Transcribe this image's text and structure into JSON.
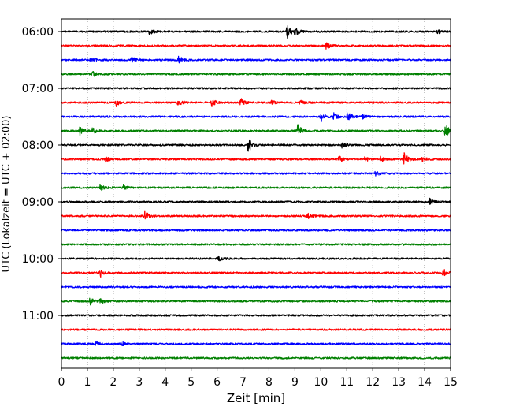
{
  "chart_data": {
    "type": "line",
    "title": "",
    "xlabel": "Zeit  [min]",
    "ylabel": "UTC (Lokalzeit = UTC + 02:00)",
    "xlim": [
      0,
      15
    ],
    "x_ticks": [
      "0",
      "1",
      "2",
      "3",
      "4",
      "5",
      "6",
      "7",
      "8",
      "9",
      "10",
      "11",
      "12",
      "13",
      "14",
      "15"
    ],
    "y_tick_labels": [
      "06:00",
      "07:00",
      "08:00",
      "09:00",
      "10:00",
      "11:00"
    ],
    "grid": "vertical dotted lines at each minute",
    "trace_interval_minutes": 15,
    "first_trace": "06:00",
    "trace_colors": [
      "#000000",
      "#ff0000",
      "#0000ff",
      "#008000"
    ],
    "traces": [
      {
        "time": "06:00",
        "color": "#000000",
        "events": [
          {
            "min": 3.4,
            "amp": 4
          },
          {
            "min": 8.7,
            "amp": 9
          },
          {
            "min": 9.0,
            "amp": 6
          },
          {
            "min": 14.5,
            "amp": 3
          }
        ]
      },
      {
        "time": "06:15",
        "color": "#ff0000",
        "events": [
          {
            "min": 10.2,
            "amp": 5
          }
        ]
      },
      {
        "time": "06:30",
        "color": "#0000ff",
        "events": [
          {
            "min": 1.1,
            "amp": 3
          },
          {
            "min": 2.7,
            "amp": 4
          },
          {
            "min": 4.5,
            "amp": 6
          }
        ]
      },
      {
        "time": "06:45",
        "color": "#008000",
        "events": [
          {
            "min": 1.2,
            "amp": 3
          }
        ]
      },
      {
        "time": "07:00",
        "color": "#000000",
        "events": []
      },
      {
        "time": "07:15",
        "color": "#ff0000",
        "events": [
          {
            "min": 2.1,
            "amp": 5
          },
          {
            "min": 4.5,
            "amp": 6
          },
          {
            "min": 5.8,
            "amp": 5
          },
          {
            "min": 6.9,
            "amp": 6
          },
          {
            "min": 8.1,
            "amp": 3
          },
          {
            "min": 9.2,
            "amp": 3
          }
        ]
      },
      {
        "time": "07:30",
        "color": "#0000ff",
        "events": [
          {
            "min": 10.0,
            "amp": 6
          },
          {
            "min": 10.5,
            "amp": 5
          },
          {
            "min": 11.0,
            "amp": 7
          },
          {
            "min": 11.6,
            "amp": 4
          }
        ]
      },
      {
        "time": "07:45",
        "color": "#008000",
        "events": [
          {
            "min": 0.7,
            "amp": 6
          },
          {
            "min": 1.2,
            "amp": 5
          },
          {
            "min": 9.1,
            "amp": 9
          },
          {
            "min": 14.8,
            "amp": 9
          }
        ]
      },
      {
        "time": "08:00",
        "color": "#000000",
        "events": [
          {
            "min": 7.2,
            "amp": 10
          },
          {
            "min": 10.8,
            "amp": 4
          }
        ]
      },
      {
        "time": "08:15",
        "color": "#ff0000",
        "events": [
          {
            "min": 1.7,
            "amp": 3
          },
          {
            "min": 10.7,
            "amp": 4
          },
          {
            "min": 11.7,
            "amp": 3
          },
          {
            "min": 12.3,
            "amp": 3
          },
          {
            "min": 13.2,
            "amp": 9
          },
          {
            "min": 13.9,
            "amp": 3
          }
        ]
      },
      {
        "time": "08:30",
        "color": "#0000ff",
        "events": [
          {
            "min": 12.1,
            "amp": 3
          }
        ]
      },
      {
        "time": "08:45",
        "color": "#008000",
        "events": [
          {
            "min": 1.5,
            "amp": 4
          },
          {
            "min": 2.4,
            "amp": 3
          }
        ]
      },
      {
        "time": "09:00",
        "color": "#000000",
        "events": [
          {
            "min": 14.2,
            "amp": 5
          }
        ]
      },
      {
        "time": "09:15",
        "color": "#ff0000",
        "events": [
          {
            "min": 3.2,
            "amp": 8
          },
          {
            "min": 9.5,
            "amp": 3
          }
        ]
      },
      {
        "time": "09:30",
        "color": "#0000ff",
        "events": []
      },
      {
        "time": "09:45",
        "color": "#008000",
        "events": []
      },
      {
        "time": "10:00",
        "color": "#000000",
        "events": [
          {
            "min": 6.0,
            "amp": 4
          }
        ]
      },
      {
        "time": "10:15",
        "color": "#ff0000",
        "events": [
          {
            "min": 1.5,
            "amp": 5
          },
          {
            "min": 14.7,
            "amp": 6
          }
        ]
      },
      {
        "time": "10:30",
        "color": "#0000ff",
        "events": []
      },
      {
        "time": "10:45",
        "color": "#008000",
        "events": [
          {
            "min": 1.1,
            "amp": 5
          },
          {
            "min": 1.5,
            "amp": 3
          }
        ]
      },
      {
        "time": "11:00",
        "color": "#000000",
        "events": []
      },
      {
        "time": "11:15",
        "color": "#ff0000",
        "events": []
      },
      {
        "time": "11:30",
        "color": "#0000ff",
        "events": [
          {
            "min": 1.3,
            "amp": 3
          },
          {
            "min": 2.3,
            "amp": 3
          }
        ]
      },
      {
        "time": "11:45",
        "color": "#008000",
        "events": []
      }
    ]
  }
}
